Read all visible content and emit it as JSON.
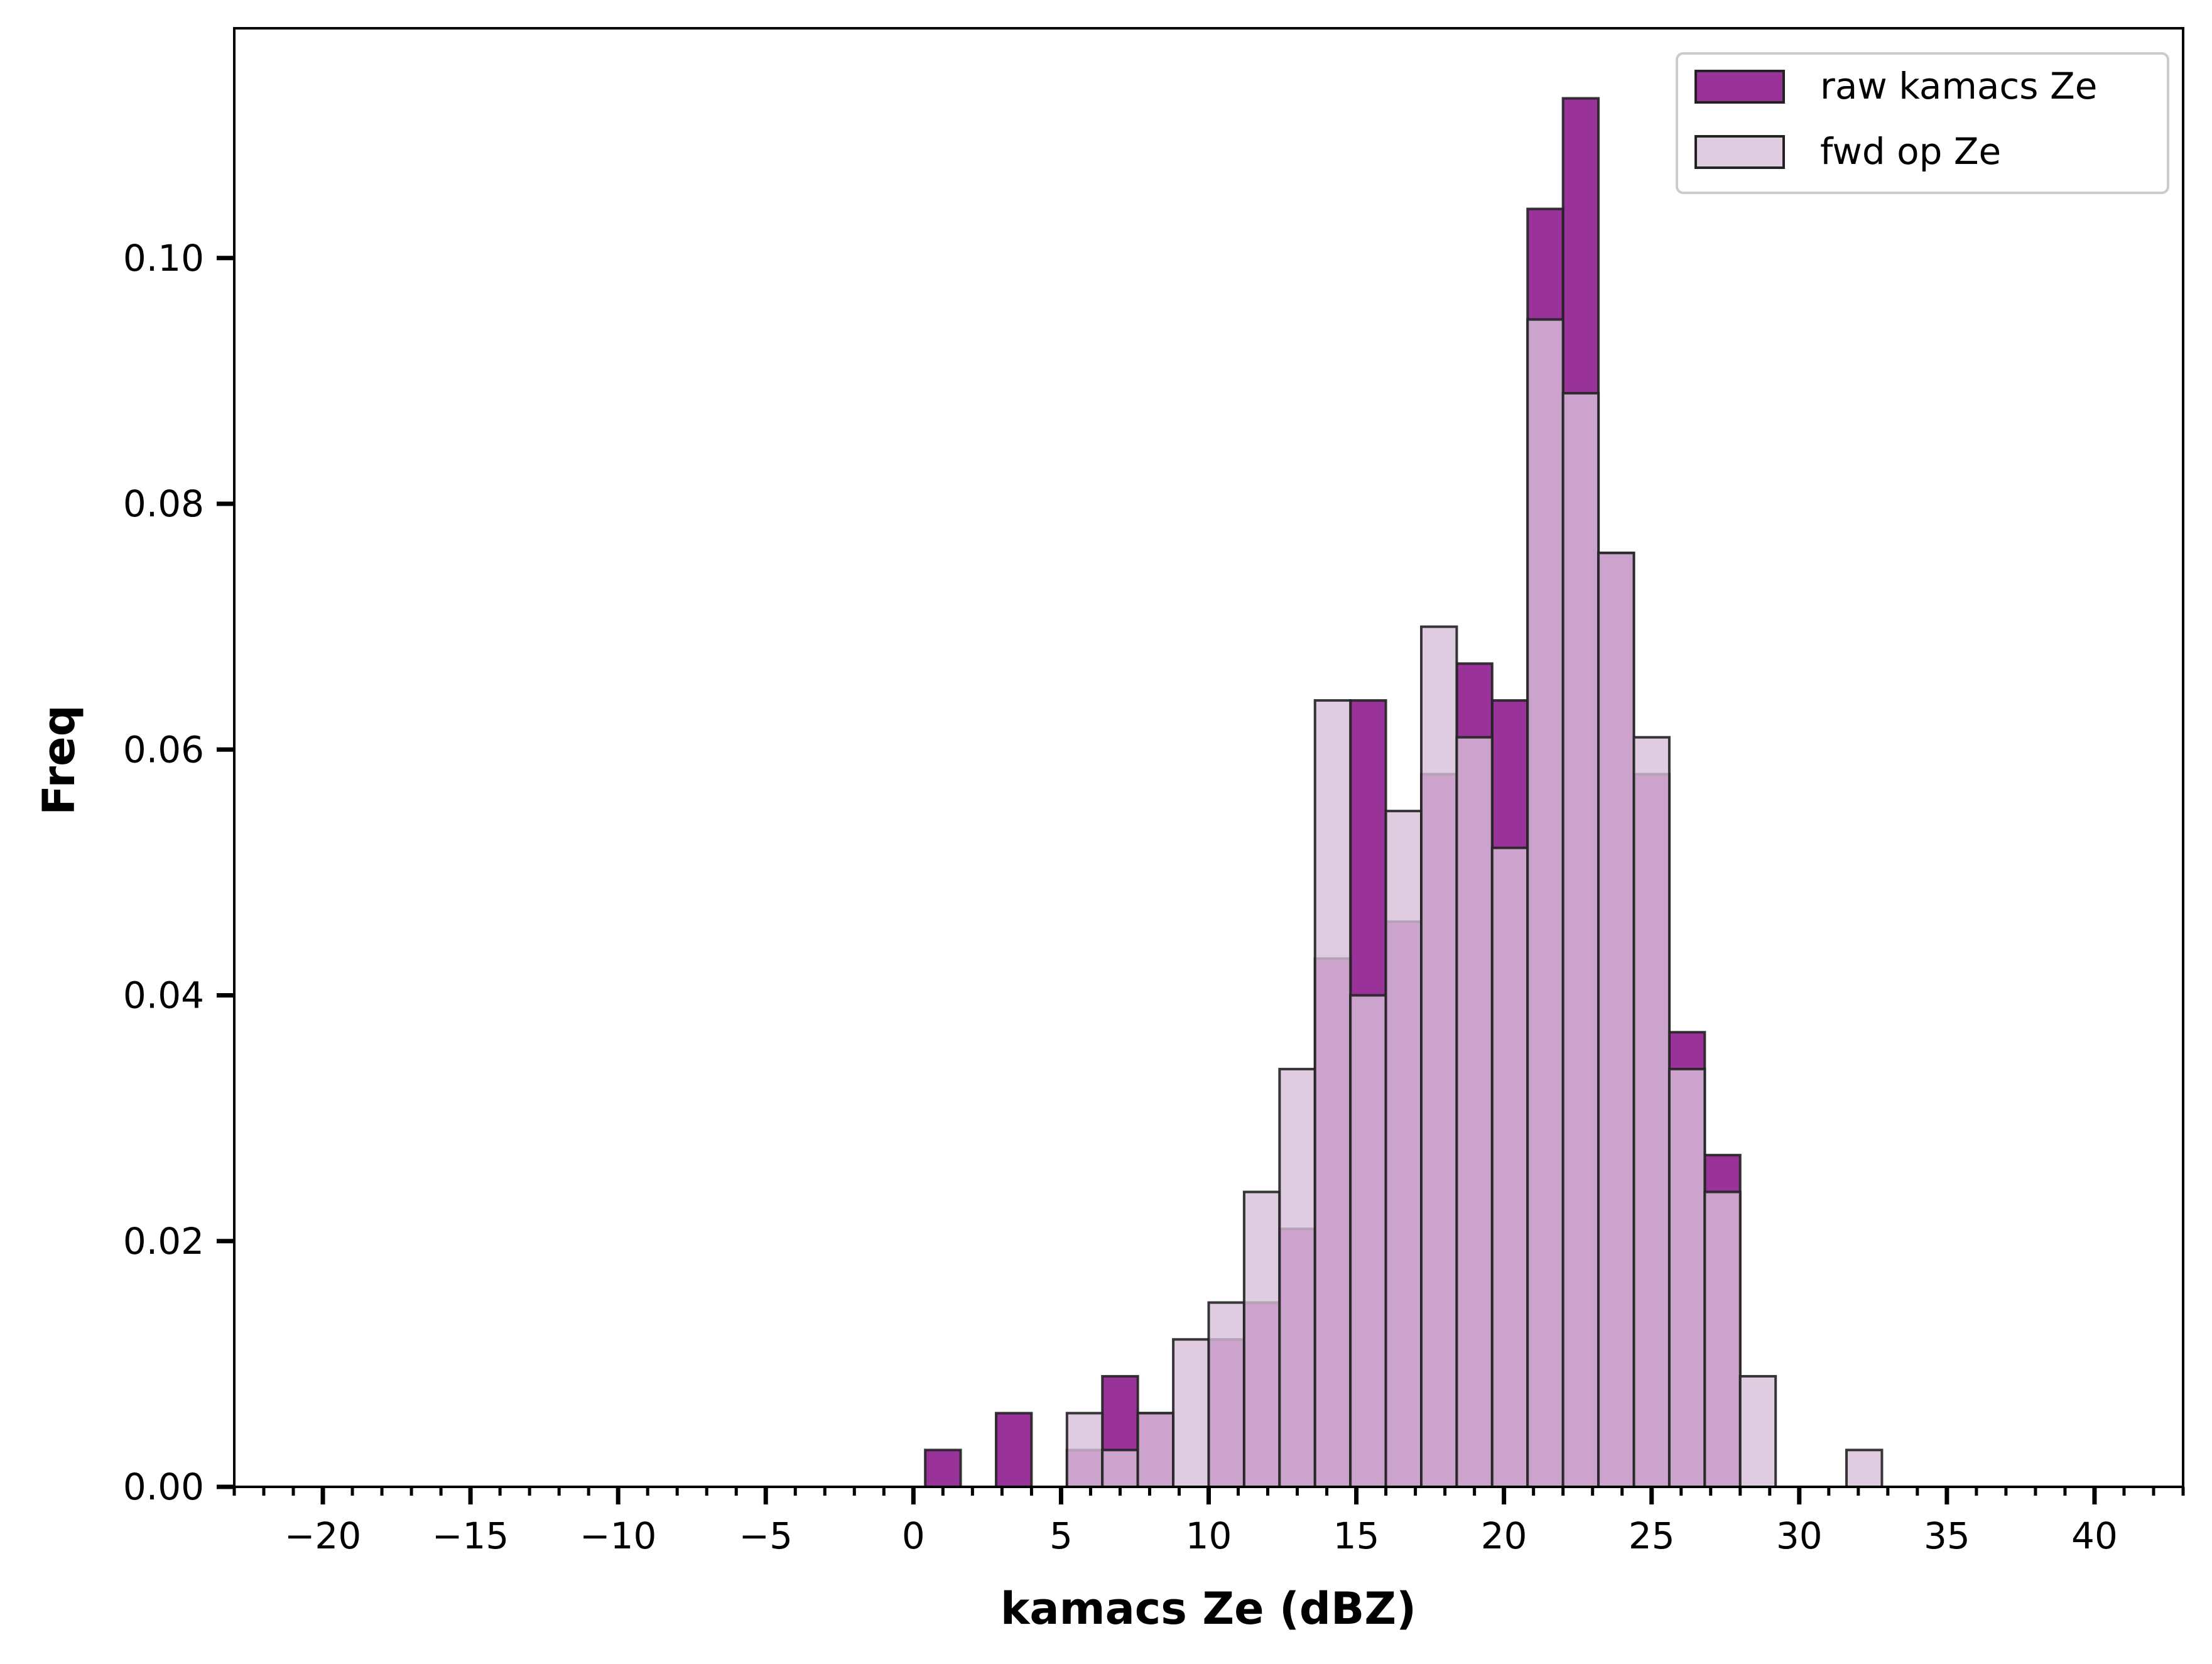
{
  "chart_data": {
    "type": "bar",
    "title": "",
    "xlabel": "kamacs Ze (dBZ)",
    "ylabel": "Freq",
    "xlim": [
      -23,
      43
    ],
    "ylim": [
      0,
      0.1187
    ],
    "grid": false,
    "legend_position": "top-right",
    "bin_width": 1.2,
    "x_ticks": [
      -20,
      -15,
      -10,
      -5,
      0,
      5,
      10,
      15,
      20,
      25,
      30,
      35,
      40
    ],
    "x_tick_labels": [
      "−20",
      "−15",
      "−10",
      "−5",
      "0",
      "5",
      "10",
      "15",
      "20",
      "25",
      "30",
      "35",
      "40"
    ],
    "y_ticks": [
      0,
      0.02,
      0.04,
      0.06,
      0.08,
      0.1
    ],
    "y_tick_labels": [
      "0.00",
      "0.02",
      "0.04",
      "0.06",
      "0.08",
      "0.10"
    ],
    "series": [
      {
        "name": "raw kamacs Ze",
        "color": "#800080",
        "opacity": 0.8,
        "bins": [
          {
            "x0": 0.4,
            "x1": 1.6,
            "value": 0.003
          },
          {
            "x0": 2.8,
            "x1": 4.0,
            "value": 0.006
          },
          {
            "x0": 5.2,
            "x1": 6.4,
            "value": 0.003
          },
          {
            "x0": 6.4,
            "x1": 7.6,
            "value": 0.009
          },
          {
            "x0": 7.6,
            "x1": 8.8,
            "value": 0.006
          },
          {
            "x0": 8.8,
            "x1": 10.0,
            "value": 0.0
          },
          {
            "x0": 10.0,
            "x1": 11.2,
            "value": 0.012
          },
          {
            "x0": 11.2,
            "x1": 12.4,
            "value": 0.015
          },
          {
            "x0": 12.4,
            "x1": 13.6,
            "value": 0.021
          },
          {
            "x0": 13.6,
            "x1": 14.8,
            "value": 0.043
          },
          {
            "x0": 14.8,
            "x1": 16.0,
            "value": 0.064
          },
          {
            "x0": 16.0,
            "x1": 17.2,
            "value": 0.046
          },
          {
            "x0": 17.2,
            "x1": 18.4,
            "value": 0.058
          },
          {
            "x0": 18.4,
            "x1": 19.6,
            "value": 0.067
          },
          {
            "x0": 19.6,
            "x1": 20.8,
            "value": 0.064
          },
          {
            "x0": 20.8,
            "x1": 22.0,
            "value": 0.104
          },
          {
            "x0": 22.0,
            "x1": 23.2,
            "value": 0.113
          },
          {
            "x0": 23.2,
            "x1": 24.4,
            "value": 0.076
          },
          {
            "x0": 24.4,
            "x1": 25.6,
            "value": 0.058
          },
          {
            "x0": 25.6,
            "x1": 26.8,
            "value": 0.037
          },
          {
            "x0": 26.8,
            "x1": 28.0,
            "value": 0.027
          }
        ]
      },
      {
        "name": "fwd op Ze",
        "color": "#d8bfd8",
        "opacity": 0.8,
        "bins": [
          {
            "x0": 5.2,
            "x1": 6.4,
            "value": 0.006
          },
          {
            "x0": 6.4,
            "x1": 7.6,
            "value": 0.003
          },
          {
            "x0": 7.6,
            "x1": 8.8,
            "value": 0.006
          },
          {
            "x0": 8.8,
            "x1": 10.0,
            "value": 0.012
          },
          {
            "x0": 10.0,
            "x1": 11.2,
            "value": 0.015
          },
          {
            "x0": 11.2,
            "x1": 12.4,
            "value": 0.024
          },
          {
            "x0": 12.4,
            "x1": 13.6,
            "value": 0.034
          },
          {
            "x0": 13.6,
            "x1": 14.8,
            "value": 0.064
          },
          {
            "x0": 14.8,
            "x1": 16.0,
            "value": 0.04
          },
          {
            "x0": 16.0,
            "x1": 17.2,
            "value": 0.055
          },
          {
            "x0": 17.2,
            "x1": 18.4,
            "value": 0.07
          },
          {
            "x0": 18.4,
            "x1": 19.6,
            "value": 0.061
          },
          {
            "x0": 19.6,
            "x1": 20.8,
            "value": 0.052
          },
          {
            "x0": 20.8,
            "x1": 22.0,
            "value": 0.095
          },
          {
            "x0": 22.0,
            "x1": 23.2,
            "value": 0.089
          },
          {
            "x0": 23.2,
            "x1": 24.4,
            "value": 0.076
          },
          {
            "x0": 24.4,
            "x1": 25.6,
            "value": 0.061
          },
          {
            "x0": 25.6,
            "x1": 26.8,
            "value": 0.034
          },
          {
            "x0": 26.8,
            "x1": 28.0,
            "value": 0.024
          },
          {
            "x0": 28.0,
            "x1": 29.2,
            "value": 0.009
          },
          {
            "x0": 31.6,
            "x1": 32.8,
            "value": 0.003
          }
        ]
      }
    ]
  }
}
